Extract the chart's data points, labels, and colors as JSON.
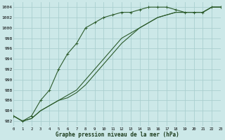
{
  "xlabel": "Graphe pression niveau de la mer (hPa)",
  "bg_color": "#cce8e8",
  "grid_color": "#aacfcf",
  "line_color": "#2d5c2d",
  "xlim": [
    0,
    23
  ],
  "ylim": [
    981,
    1005
  ],
  "ytick_vals": [
    982,
    984,
    986,
    988,
    990,
    992,
    994,
    996,
    998,
    1000,
    1002,
    1004
  ],
  "xtick_vals": [
    0,
    1,
    2,
    3,
    4,
    5,
    6,
    7,
    8,
    9,
    10,
    11,
    12,
    13,
    14,
    15,
    16,
    17,
    18,
    19,
    20,
    21,
    22,
    23
  ],
  "s1_marked": [
    983,
    982,
    983,
    986,
    988,
    992,
    995,
    997,
    1000,
    1001,
    1002,
    1002.5,
    1003,
    1003,
    1003.5,
    1004,
    1004,
    1004,
    1003.5,
    1003,
    1003,
    1003,
    1004,
    1004
  ],
  "s2_plain": [
    983,
    982,
    982.5,
    984,
    985,
    986,
    987,
    988,
    990,
    992,
    994,
    996,
    998,
    999,
    1000,
    1001,
    1002,
    1002.5,
    1003,
    1003,
    1003,
    1003,
    1004,
    1004
  ],
  "s3_plain": [
    983,
    982,
    982.5,
    984,
    985,
    986,
    986.5,
    987.5,
    989,
    991,
    993,
    995,
    997,
    998.5,
    1000,
    1001,
    1002,
    1002.5,
    1003,
    1003,
    1003,
    1003,
    1004,
    1004
  ],
  "figsize": [
    3.2,
    2.0
  ],
  "dpi": 100
}
